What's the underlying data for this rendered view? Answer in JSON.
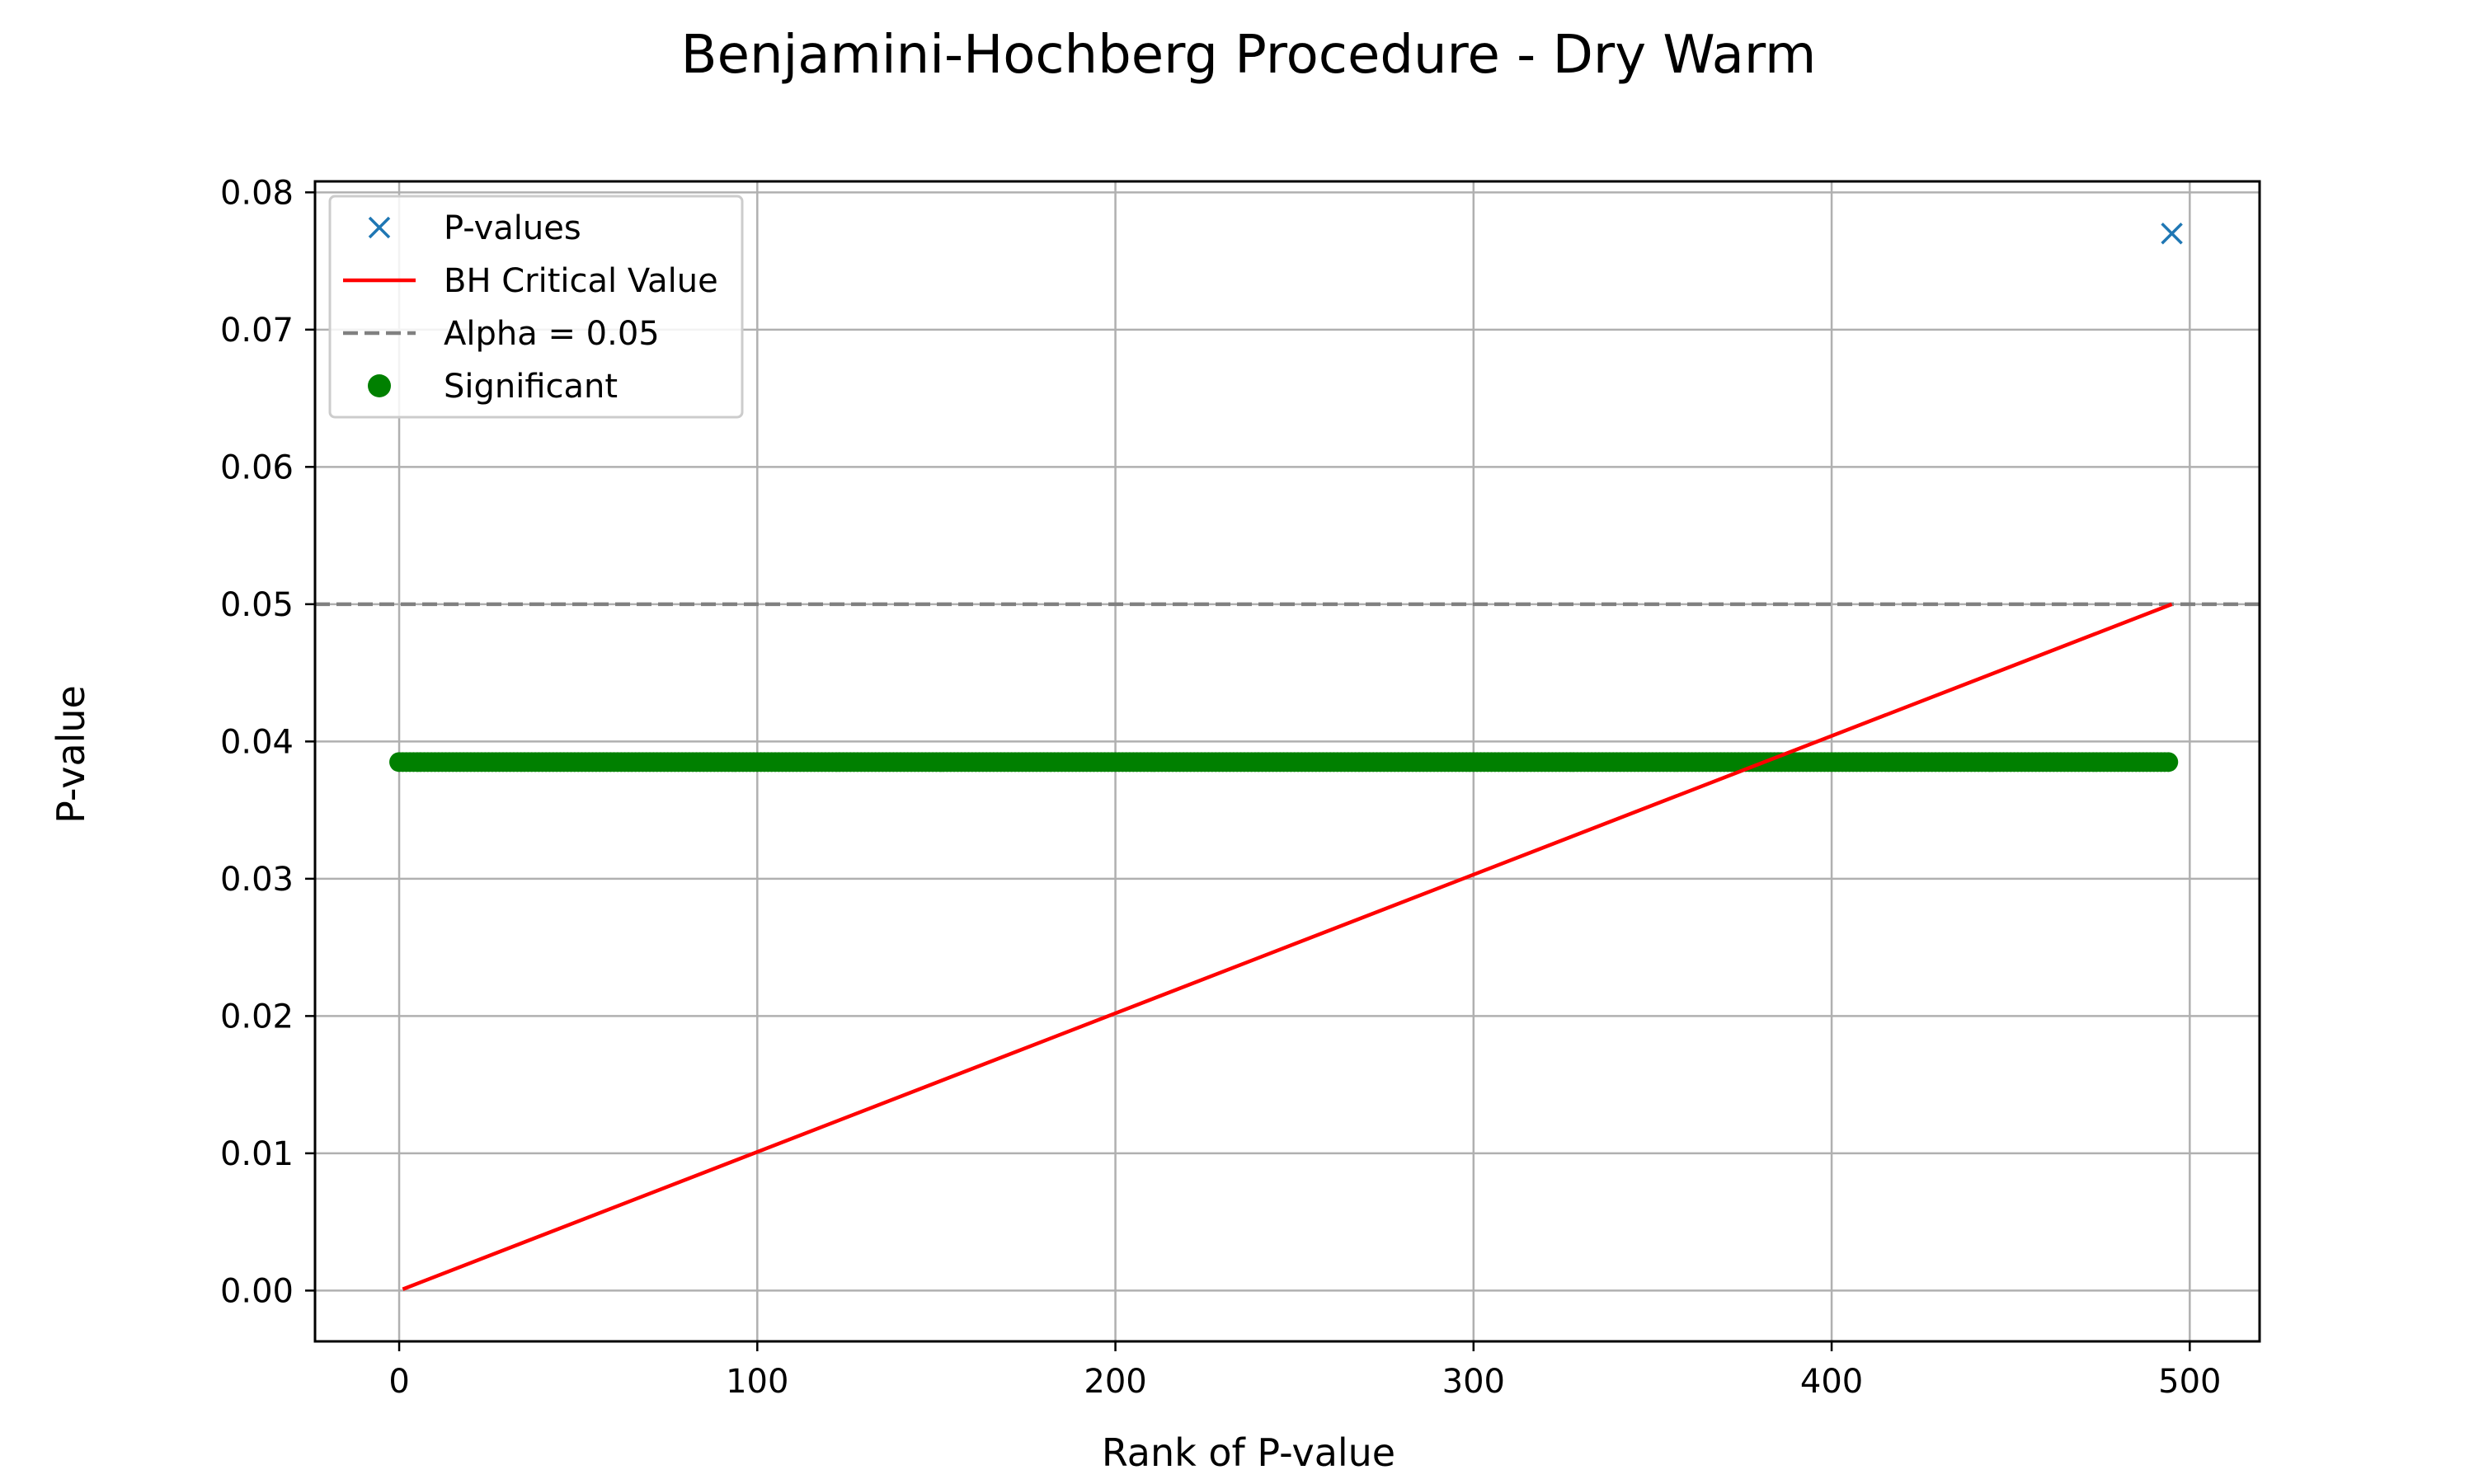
{
  "chart_data": {
    "type": "scatter",
    "title": "Benjamini-Hochberg Procedure - Dry Warm",
    "xlabel": "Rank of P-value",
    "ylabel": "P-value",
    "xlim": [
      -23.5,
      519.5
    ],
    "ylim": [
      -0.0037,
      0.0808
    ],
    "x_ticks": [
      0,
      100,
      200,
      300,
      400,
      500
    ],
    "y_ticks": [
      0.0,
      0.01,
      0.02,
      0.03,
      0.04,
      0.05,
      0.06,
      0.07,
      0.08
    ],
    "x_tick_labels": [
      "0",
      "100",
      "200",
      "300",
      "400",
      "500"
    ],
    "y_tick_labels": [
      "0.00",
      "0.01",
      "0.02",
      "0.03",
      "0.04",
      "0.05",
      "0.06",
      "0.07",
      "0.08"
    ],
    "grid": true,
    "legend_position": "top-left",
    "series": [
      {
        "name": "P-values",
        "kind": "marker-x",
        "color": "#1f77b4",
        "points": [
          [
            495,
            0.077
          ]
        ]
      },
      {
        "name": "BH Critical Value",
        "kind": "line",
        "color": "#ff0000",
        "points": [
          [
            1,
            0.0001
          ],
          [
            495,
            0.05
          ]
        ]
      },
      {
        "name": "Alpha = 0.05",
        "kind": "hline-dashed",
        "color": "#808080",
        "y": 0.05
      },
      {
        "name": "Significant",
        "kind": "marker-dot",
        "color": "#008000",
        "x_range": [
          0,
          494
        ],
        "y": 0.0385
      }
    ]
  }
}
